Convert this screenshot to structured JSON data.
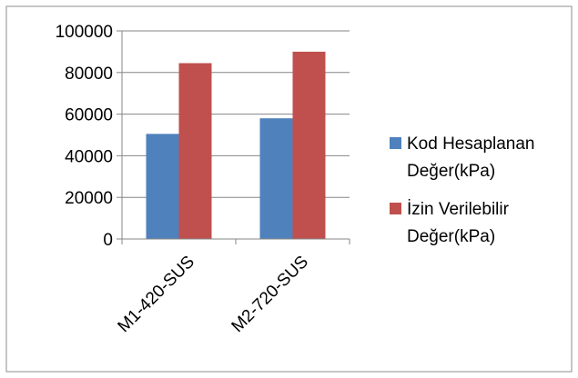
{
  "chart_data": {
    "type": "bar",
    "title": "",
    "xlabel": "",
    "ylabel": "",
    "categories": [
      "M1-420-SUS",
      "M2-720-SUS"
    ],
    "series": [
      {
        "name": "Kod Hesaplanan Değer(kPa)",
        "color": "#4F81BD",
        "values": [
          50500,
          58000
        ]
      },
      {
        "name": "İzin Verilebilir Değer(kPa)",
        "color": "#C0504D",
        "values": [
          84500,
          90000
        ]
      }
    ],
    "ylim": [
      0,
      100000
    ],
    "yticks": [
      "0",
      "20000",
      "40000",
      "60000",
      "80000",
      "100000"
    ],
    "grid": true,
    "legend_position": "right"
  }
}
